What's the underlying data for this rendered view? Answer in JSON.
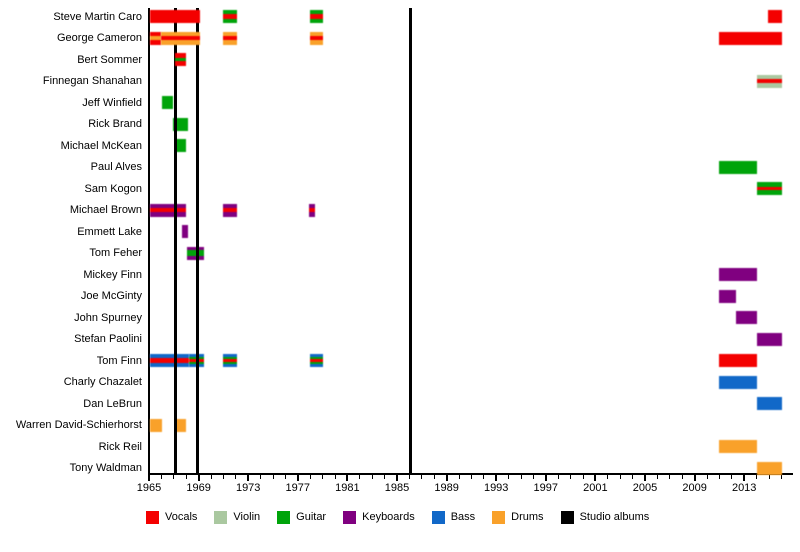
{
  "chart_data": {
    "type": "bar",
    "subtype": "band-membership-timeline",
    "title": "",
    "x_axis": {
      "major_tick_labels": [
        "1965",
        "1969",
        "1973",
        "1977",
        "1981",
        "1985",
        "1989",
        "1993",
        "1997",
        "2001",
        "2005",
        "2009",
        "2013"
      ],
      "minor_tick_start": 1965,
      "minor_tick_end": 2016,
      "minor_tick_interval": 1,
      "range": [
        1965,
        2016.8
      ]
    },
    "roles": {
      "vocals": "#f40000",
      "violin": "#aac8a0",
      "guitar": "#00a40a",
      "keyboards": "#800080",
      "bass": "#1168c8",
      "drums": "#f9a12a",
      "studio": "#000000"
    },
    "legend": [
      {
        "label": "Vocals",
        "role": "vocals"
      },
      {
        "label": "Violin",
        "role": "violin"
      },
      {
        "label": "Guitar",
        "role": "guitar"
      },
      {
        "label": "Keyboards",
        "role": "keyboards"
      },
      {
        "label": "Bass",
        "role": "bass"
      },
      {
        "label": "Drums",
        "role": "drums"
      },
      {
        "label": "Studio albums",
        "role": "studio"
      }
    ],
    "album_lines_years": [
      1967.15,
      1968.9,
      1986.05
    ],
    "members": [
      {
        "name": "Steve Martin Caro",
        "front": true,
        "stints": [
          {
            "from": 1965.05,
            "till": 1969.1,
            "stripes": [
              [
                "vocals",
                1
              ]
            ]
          },
          {
            "from": 1971.0,
            "till": 1972.1,
            "stripes": [
              [
                "guitar",
                0.31
              ],
              [
                "vocals",
                0.38
              ],
              [
                "guitar",
                0.31
              ]
            ]
          },
          {
            "from": 1978.0,
            "till": 1979.0,
            "stripes": [
              [
                "guitar",
                0.31
              ],
              [
                "vocals",
                0.38
              ],
              [
                "guitar",
                0.31
              ]
            ]
          },
          {
            "from": 2014.9,
            "till": 2016.05,
            "stripes": [
              [
                "vocals",
                1
              ]
            ]
          }
        ]
      },
      {
        "name": "George Cameron",
        "front": true,
        "stints": [
          {
            "from": 1965.05,
            "till": 1966.0,
            "stripes": [
              [
                "vocals",
                0.36
              ],
              [
                "drums",
                0.28
              ],
              [
                "vocals",
                0.36
              ]
            ]
          },
          {
            "from": 1966.0,
            "till": 1969.1,
            "stripes": [
              [
                "drums",
                0.36
              ],
              [
                "vocals",
                0.28
              ],
              [
                "drums",
                0.36
              ]
            ]
          },
          {
            "from": 1971.0,
            "till": 1972.1,
            "stripes": [
              [
                "drums",
                0.36
              ],
              [
                "vocals",
                0.28
              ],
              [
                "drums",
                0.36
              ]
            ]
          },
          {
            "from": 1978.0,
            "till": 1979.0,
            "stripes": [
              [
                "drums",
                0.36
              ],
              [
                "vocals",
                0.28
              ],
              [
                "drums",
                0.36
              ]
            ]
          },
          {
            "from": 2011.0,
            "till": 2016.05,
            "stripes": [
              [
                "vocals",
                1
              ]
            ]
          }
        ]
      },
      {
        "name": "Bert Sommer",
        "front": true,
        "stints": [
          {
            "from": 1967.1,
            "till": 1968.0,
            "stripes": [
              [
                "vocals",
                0.36
              ],
              [
                "guitar",
                0.28
              ],
              [
                "vocals",
                0.36
              ]
            ]
          }
        ]
      },
      {
        "name": "Finnegan Shanahan",
        "stints": [
          {
            "from": 2014.0,
            "till": 2016.05,
            "stripes": [
              [
                "violin",
                0.36
              ],
              [
                "vocals",
                0.28
              ],
              [
                "violin",
                0.36
              ]
            ]
          }
        ]
      },
      {
        "name": "Jeff Winfield",
        "stints": [
          {
            "from": 1966.05,
            "till": 1966.95,
            "stripes": [
              [
                "guitar",
                1
              ]
            ]
          }
        ]
      },
      {
        "name": "Rick Brand",
        "stints": [
          {
            "from": 1966.95,
            "till": 1968.15,
            "stripes": [
              [
                "guitar",
                1
              ]
            ]
          }
        ]
      },
      {
        "name": "Michael McKean",
        "stints": [
          {
            "from": 1967.2,
            "till": 1968.0,
            "stripes": [
              [
                "guitar",
                1
              ]
            ]
          }
        ]
      },
      {
        "name": "Paul Alves",
        "stints": [
          {
            "from": 2011.0,
            "till": 2014.0,
            "stripes": [
              [
                "guitar",
                1
              ]
            ]
          }
        ]
      },
      {
        "name": "Sam Kogon",
        "stints": [
          {
            "from": 2014.0,
            "till": 2016.05,
            "stripes": [
              [
                "guitar",
                0.36
              ],
              [
                "vocals",
                0.28
              ],
              [
                "guitar",
                0.36
              ]
            ]
          }
        ]
      },
      {
        "name": "Michael Brown",
        "stints": [
          {
            "from": 1965.05,
            "till": 1968.0,
            "stripes": [
              [
                "keyboards",
                0.36
              ],
              [
                "vocals",
                0.28
              ],
              [
                "keyboards",
                0.36
              ]
            ]
          },
          {
            "from": 1971.0,
            "till": 1972.1,
            "stripes": [
              [
                "keyboards",
                0.36
              ],
              [
                "vocals",
                0.28
              ],
              [
                "keyboards",
                0.36
              ]
            ]
          },
          {
            "from": 1977.9,
            "till": 1978.35,
            "stripes": [
              [
                "keyboards",
                0.36
              ],
              [
                "vocals",
                0.28
              ],
              [
                "keyboards",
                0.36
              ]
            ]
          }
        ]
      },
      {
        "name": "Emmett Lake",
        "stints": [
          {
            "from": 1967.65,
            "till": 1968.15,
            "stripes": [
              [
                "keyboards",
                1
              ]
            ]
          }
        ]
      },
      {
        "name": "Tom Feher",
        "stints": [
          {
            "from": 1968.1,
            "till": 1969.45,
            "stripes": [
              [
                "keyboards",
                0.3
              ],
              [
                "guitar",
                0.4
              ],
              [
                "keyboards",
                0.3
              ]
            ]
          }
        ]
      },
      {
        "name": "Mickey Finn",
        "stints": [
          {
            "from": 2011.0,
            "till": 2014.0,
            "stripes": [
              [
                "keyboards",
                1
              ]
            ]
          }
        ]
      },
      {
        "name": "Joe McGinty",
        "stints": [
          {
            "from": 2011.0,
            "till": 2012.3,
            "stripes": [
              [
                "keyboards",
                1
              ]
            ]
          }
        ]
      },
      {
        "name": "John Spurney",
        "stints": [
          {
            "from": 2012.3,
            "till": 2014.0,
            "stripes": [
              [
                "keyboards",
                1
              ]
            ]
          }
        ]
      },
      {
        "name": "Stefan Paolini",
        "stints": [
          {
            "from": 2014.0,
            "till": 2016.05,
            "stripes": [
              [
                "keyboards",
                1
              ]
            ]
          }
        ]
      },
      {
        "name": "Tom Finn",
        "stints": [
          {
            "from": 1965.05,
            "till": 1968.2,
            "stripes": [
              [
                "bass",
                0.28
              ],
              [
                "vocals",
                0.44
              ],
              [
                "bass",
                0.28
              ]
            ]
          },
          {
            "from": 1968.2,
            "till": 1969.45,
            "stripes": [
              [
                "bass",
                0.2
              ],
              [
                "guitar",
                0.2
              ],
              [
                "vocals",
                0.2
              ],
              [
                "guitar",
                0.2
              ],
              [
                "bass",
                0.2
              ]
            ]
          },
          {
            "from": 1971.0,
            "till": 1972.1,
            "stripes": [
              [
                "bass",
                0.2
              ],
              [
                "guitar",
                0.2
              ],
              [
                "vocals",
                0.2
              ],
              [
                "guitar",
                0.2
              ],
              [
                "bass",
                0.2
              ]
            ]
          },
          {
            "from": 1978.0,
            "till": 1979.0,
            "stripes": [
              [
                "bass",
                0.2
              ],
              [
                "guitar",
                0.2
              ],
              [
                "vocals",
                0.2
              ],
              [
                "guitar",
                0.2
              ],
              [
                "bass",
                0.2
              ]
            ]
          },
          {
            "from": 2011.0,
            "till": 2014.0,
            "stripes": [
              [
                "vocals",
                1
              ]
            ]
          }
        ]
      },
      {
        "name": "Charly Chazalet",
        "stints": [
          {
            "from": 2011.0,
            "till": 2014.0,
            "stripes": [
              [
                "bass",
                1
              ]
            ]
          }
        ]
      },
      {
        "name": "Dan LeBrun",
        "stints": [
          {
            "from": 2014.0,
            "till": 2016.05,
            "stripes": [
              [
                "bass",
                1
              ]
            ]
          }
        ]
      },
      {
        "name": "Warren David-Schierhorst",
        "stints": [
          {
            "from": 1965.05,
            "till": 1966.05,
            "stripes": [
              [
                "drums",
                1
              ]
            ]
          },
          {
            "from": 1967.2,
            "till": 1968.0,
            "stripes": [
              [
                "drums",
                1
              ]
            ]
          }
        ]
      },
      {
        "name": "Rick Reil",
        "stints": [
          {
            "from": 2011.0,
            "till": 2014.0,
            "stripes": [
              [
                "drums",
                1
              ]
            ]
          }
        ]
      },
      {
        "name": "Tony Waldman",
        "stints": [
          {
            "from": 2014.0,
            "till": 2016.05,
            "stripes": [
              [
                "drums",
                1
              ]
            ]
          }
        ]
      }
    ]
  }
}
